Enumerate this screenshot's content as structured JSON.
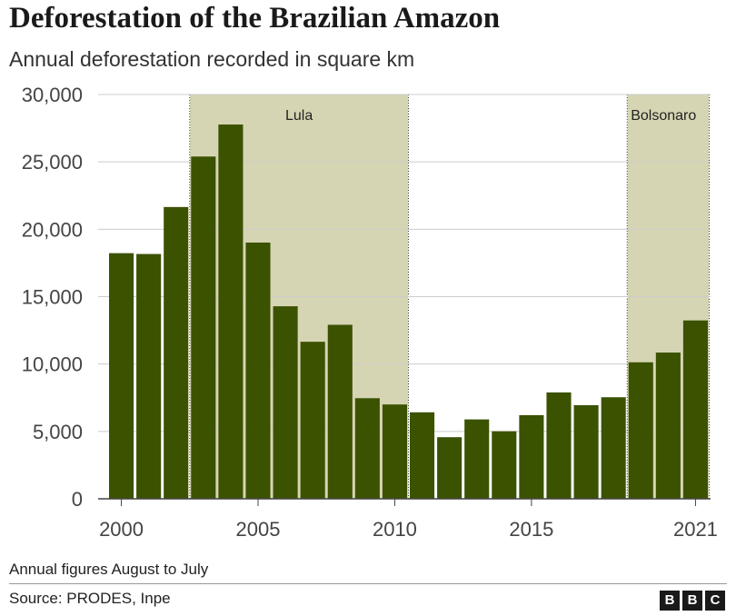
{
  "chart_data": {
    "type": "bar",
    "title": "Deforestation of the Brazilian Amazon",
    "subtitle": "Annual deforestation recorded in square km",
    "xlabel": "",
    "ylabel": "",
    "ylim": [
      0,
      30000
    ],
    "yticks": [
      0,
      5000,
      10000,
      15000,
      20000,
      25000,
      30000
    ],
    "ytick_labels": [
      "0",
      "5,000",
      "10,000",
      "15,000",
      "20,000",
      "25,000",
      "30,000"
    ],
    "xtick_years": [
      2000,
      2005,
      2010,
      2015,
      2021
    ],
    "xtick_labels": [
      "2000",
      "2005",
      "2010",
      "2015",
      "2021"
    ],
    "categories": [
      2000,
      2001,
      2002,
      2003,
      2004,
      2005,
      2006,
      2007,
      2008,
      2009,
      2010,
      2011,
      2012,
      2013,
      2014,
      2015,
      2016,
      2017,
      2018,
      2019,
      2020,
      2021
    ],
    "values": [
      18226,
      18165,
      21651,
      25396,
      27772,
      19014,
      14286,
      11651,
      12911,
      7464,
      7000,
      6418,
      4571,
      5891,
      5012,
      6207,
      7893,
      6947,
      7536,
      10129,
      10851,
      13235
    ],
    "bar_color": "#3b5200",
    "grid": true,
    "periods": [
      {
        "label": "Lula",
        "start_year": 2003,
        "end_year": 2010,
        "color": "#d6d5b3"
      },
      {
        "label": "Bolsonaro",
        "start_year": 2019,
        "end_year": 2021,
        "color": "#d6d5b3"
      }
    ]
  },
  "footer": {
    "note": "Annual figures August to July",
    "source": "Source: PRODES, Inpe",
    "logo_letters": [
      "B",
      "B",
      "C"
    ]
  }
}
